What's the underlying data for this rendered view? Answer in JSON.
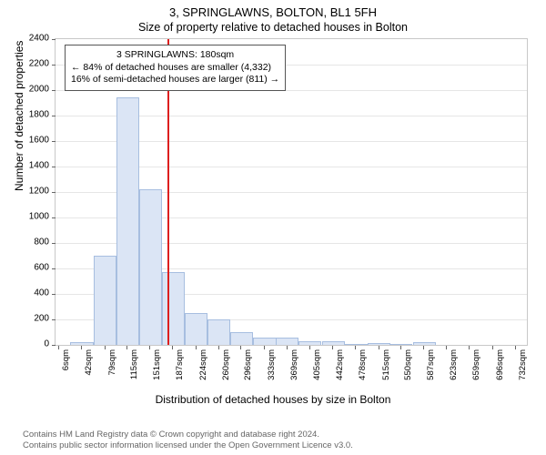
{
  "titles": {
    "line1": "3, SPRINGLAWNS, BOLTON, BL1 5FH",
    "line2": "Size of property relative to detached houses in Bolton"
  },
  "chart": {
    "type": "histogram",
    "plot_background": "#ffffff",
    "grid_color": "#e6e6e6",
    "border_color": "#c8c8c8",
    "bar_fill": "#dbe5f5",
    "bar_stroke": "#a7bee0",
    "marker_line_color": "#dd1f1f",
    "marker_x_value": 180,
    "xlim": [
      0,
      750
    ],
    "ylim": [
      0,
      2400
    ],
    "yticks": [
      0,
      200,
      400,
      600,
      800,
      1000,
      1200,
      1400,
      1600,
      1800,
      2000,
      2200,
      2400
    ],
    "xtick_labels": [
      "6sqm",
      "42sqm",
      "79sqm",
      "115sqm",
      "151sqm",
      "187sqm",
      "224sqm",
      "260sqm",
      "296sqm",
      "333sqm",
      "369sqm",
      "405sqm",
      "442sqm",
      "478sqm",
      "515sqm",
      "550sqm",
      "587sqm",
      "623sqm",
      "659sqm",
      "696sqm",
      "732sqm"
    ],
    "xtick_centers": [
      6,
      42,
      79,
      115,
      151,
      187,
      224,
      260,
      296,
      333,
      369,
      405,
      442,
      478,
      515,
      550,
      587,
      623,
      659,
      696,
      732
    ],
    "bin_width": 36.5,
    "bars": [
      {
        "center": 42,
        "count": 20
      },
      {
        "center": 79,
        "count": 700
      },
      {
        "center": 115,
        "count": 1940
      },
      {
        "center": 151,
        "count": 1220
      },
      {
        "center": 187,
        "count": 570
      },
      {
        "center": 224,
        "count": 250
      },
      {
        "center": 260,
        "count": 200
      },
      {
        "center": 296,
        "count": 100
      },
      {
        "center": 333,
        "count": 60
      },
      {
        "center": 369,
        "count": 60
      },
      {
        "center": 405,
        "count": 30
      },
      {
        "center": 442,
        "count": 30
      },
      {
        "center": 478,
        "count": 10
      },
      {
        "center": 515,
        "count": 15
      },
      {
        "center": 550,
        "count": 5
      },
      {
        "center": 587,
        "count": 20
      }
    ],
    "ylabel": "Number of detached properties",
    "xlabel": "Distribution of detached houses by size in Bolton"
  },
  "annotation": {
    "line1": "3 SPRINGLAWNS: 180sqm",
    "line2": "← 84% of detached houses are smaller (4,332)",
    "line3": "16% of semi-detached houses are larger (811) →",
    "border_color": "#555555",
    "background": "#ffffff"
  },
  "footer": {
    "line1": "Contains HM Land Registry data © Crown copyright and database right 2024.",
    "line2": "Contains public sector information licensed under the Open Government Licence v3.0."
  },
  "fonts": {
    "title_size_pt": 13,
    "label_size_pt": 12,
    "tick_size_pt": 10,
    "annot_size_pt": 10.5,
    "footer_size_pt": 9.5
  }
}
